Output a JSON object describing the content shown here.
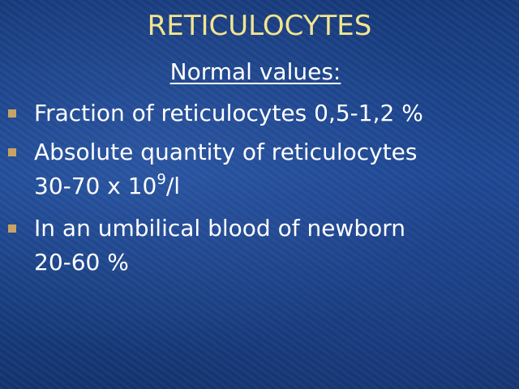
{
  "title": "RETICULOCYTES",
  "subtitle": "Normal values:",
  "bullets": [
    {
      "line1": "Fraction of reticulocytes 0,5-1,2 %"
    },
    {
      "line1": "Absolute quantity of reticulocytes",
      "line2": "30-70 x 10",
      "sup": "9",
      "tail": "/l"
    },
    {
      "line1": "In an umbilical blood of newborn",
      "line2": "20-60 %"
    }
  ]
}
